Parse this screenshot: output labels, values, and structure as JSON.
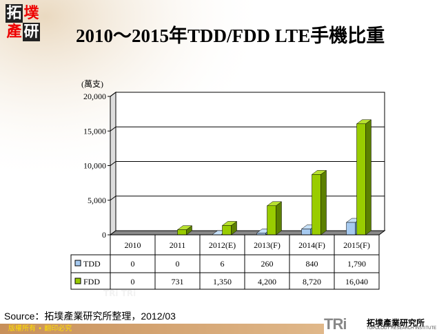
{
  "logo_text": "拓墣產研",
  "title": "2010～2015年TDD/FDD LTE手機比重",
  "source": "Source：拓墣產業研究所整理，2012/03",
  "footer": "版權所有 • 翻印必究",
  "brand": {
    "mark": "TRi",
    "name": "拓墣產業研究所",
    "english": "TOPOLOGY RESEARCH INSTITUTE"
  },
  "chart_data": {
    "type": "bar",
    "unit_label": "(萬支)",
    "categories": [
      "2010",
      "2011",
      "2012(E)",
      "2013(F)",
      "2014(F)",
      "2015(F)"
    ],
    "series": [
      {
        "name": "TDD",
        "values": [
          0,
          0,
          6,
          260,
          840,
          1790
        ],
        "labels": [
          "0",
          "0",
          "6",
          "260",
          "840",
          "1,790"
        ],
        "color": "#a6caf0"
      },
      {
        "name": "FDD",
        "values": [
          0,
          731,
          1350,
          4200,
          8720,
          16040
        ],
        "labels": [
          "0",
          "731",
          "1,350",
          "4,200",
          "8,720",
          "16,040"
        ],
        "color": "#99cc00"
      }
    ],
    "ylim": [
      0,
      20000
    ],
    "yticks": [
      0,
      5000,
      10000,
      15000,
      20000
    ],
    "ytick_labels": [
      "0",
      "5,000",
      "10,000",
      "15,000",
      "20,000"
    ],
    "grid": true,
    "legend": "data-table"
  }
}
